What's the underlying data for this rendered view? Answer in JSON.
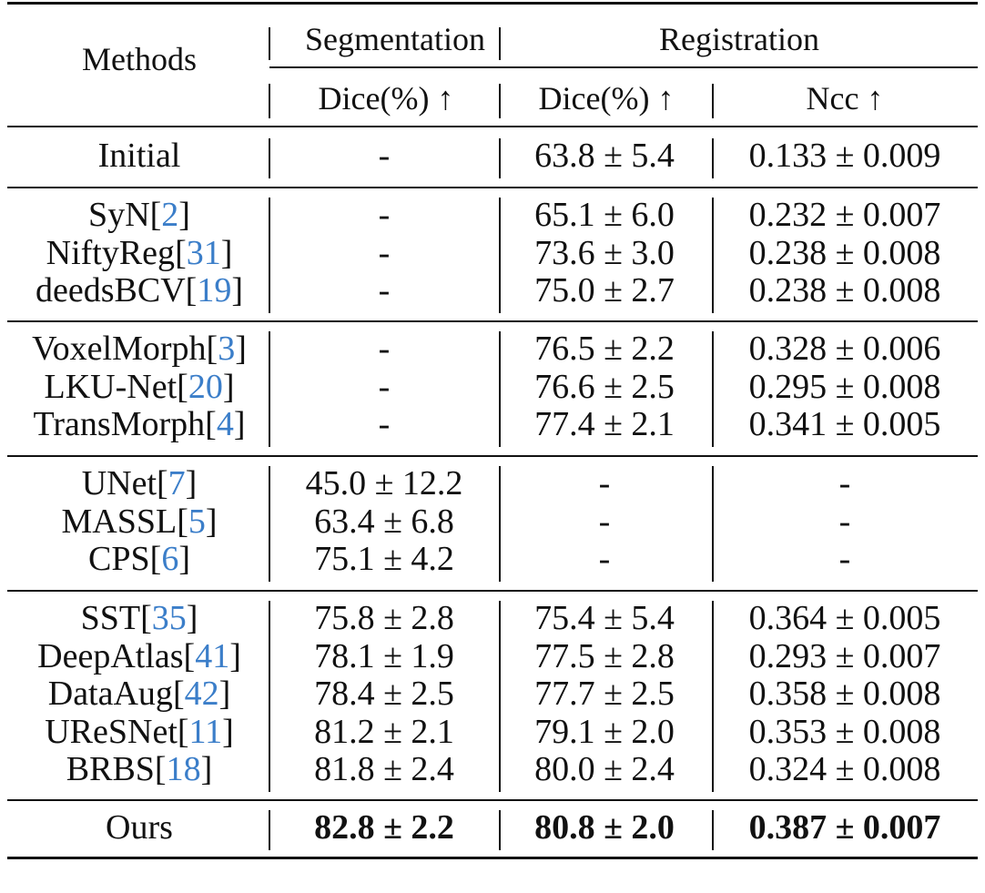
{
  "header": {
    "methods": "Methods",
    "segmentation": "Segmentation",
    "registration": "Registration",
    "seg_dice": "Dice(%) ↑",
    "reg_dice": "Dice(%) ↑",
    "reg_ncc": "Ncc ↑"
  },
  "groups": [
    [
      {
        "name": "Initial",
        "cite": "",
        "seg": "-",
        "reg_dice": "63.8 ± 5.4",
        "ncc": "0.133 ± 0.009"
      }
    ],
    [
      {
        "name": "SyN",
        "cite": "2",
        "seg": "-",
        "reg_dice": "65.1 ± 6.0",
        "ncc": "0.232 ± 0.007"
      },
      {
        "name": "NiftyReg",
        "cite": "31",
        "seg": "-",
        "reg_dice": "73.6 ± 3.0",
        "ncc": "0.238 ± 0.008"
      },
      {
        "name": "deedsBCV",
        "cite": "19",
        "seg": "-",
        "reg_dice": "75.0 ± 2.7",
        "ncc": "0.238 ± 0.008"
      }
    ],
    [
      {
        "name": "VoxelMorph",
        "cite": "3",
        "seg": "-",
        "reg_dice": "76.5 ± 2.2",
        "ncc": "0.328 ± 0.006"
      },
      {
        "name": "LKU-Net",
        "cite": "20",
        "seg": "-",
        "reg_dice": "76.6 ± 2.5",
        "ncc": "0.295 ± 0.008"
      },
      {
        "name": "TransMorph",
        "cite": "4",
        "seg": "-",
        "reg_dice": "77.4 ± 2.1",
        "ncc": "0.341 ± 0.005"
      }
    ],
    [
      {
        "name": "UNet",
        "cite": "7",
        "seg": "45.0 ± 12.2",
        "reg_dice": "-",
        "ncc": "-"
      },
      {
        "name": "MASSL",
        "cite": "5",
        "seg": "63.4 ± 6.8",
        "reg_dice": "-",
        "ncc": "-"
      },
      {
        "name": "CPS",
        "cite": "6",
        "seg": "75.1 ± 4.2",
        "reg_dice": "-",
        "ncc": "-"
      }
    ],
    [
      {
        "name": "SST",
        "cite": "35",
        "seg": "75.8 ± 2.8",
        "reg_dice": "75.4 ± 5.4",
        "ncc": "0.364 ± 0.005"
      },
      {
        "name": "DeepAtlas",
        "cite": "41",
        "seg": "78.1 ± 1.9",
        "reg_dice": "77.5 ± 2.8",
        "ncc": "0.293 ± 0.007"
      },
      {
        "name": "DataAug",
        "cite": "42",
        "seg": "78.4 ± 2.5",
        "reg_dice": "77.7 ± 2.5",
        "ncc": "0.358 ± 0.008"
      },
      {
        "name": "UReSNet",
        "cite": "11",
        "seg": "81.2 ± 2.1",
        "reg_dice": "79.1 ± 2.0",
        "ncc": "0.353 ± 0.008"
      },
      {
        "name": "BRBS",
        "cite": "18",
        "seg": "81.8 ± 2.4",
        "reg_dice": "80.0 ± 2.4",
        "ncc": "0.324 ± 0.008"
      }
    ],
    [
      {
        "name": "Ours",
        "cite": "",
        "seg": "82.8 ± 2.2",
        "reg_dice": "80.8 ± 2.0",
        "ncc": "0.387 ± 0.007",
        "bold": true
      }
    ]
  ]
}
